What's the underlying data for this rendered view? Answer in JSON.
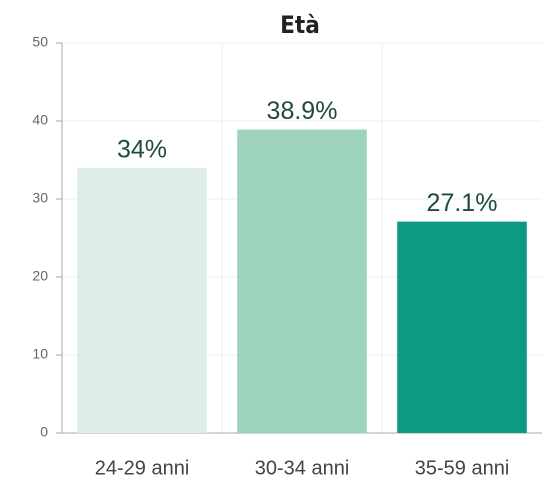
{
  "chart_data": {
    "type": "bar",
    "title": "Età",
    "categories": [
      "24-29 anni",
      "30-34 anni",
      "35-59 anni"
    ],
    "values": [
      34,
      38.9,
      27.1
    ],
    "value_labels": [
      "34%",
      "38.9%",
      "27.1%"
    ],
    "colors": [
      "#deede8",
      "#9dd3bd",
      "#0e9a82"
    ],
    "ylim": [
      0,
      50
    ],
    "yticks": [
      0,
      10,
      20,
      30,
      40,
      50
    ],
    "grid": true
  }
}
